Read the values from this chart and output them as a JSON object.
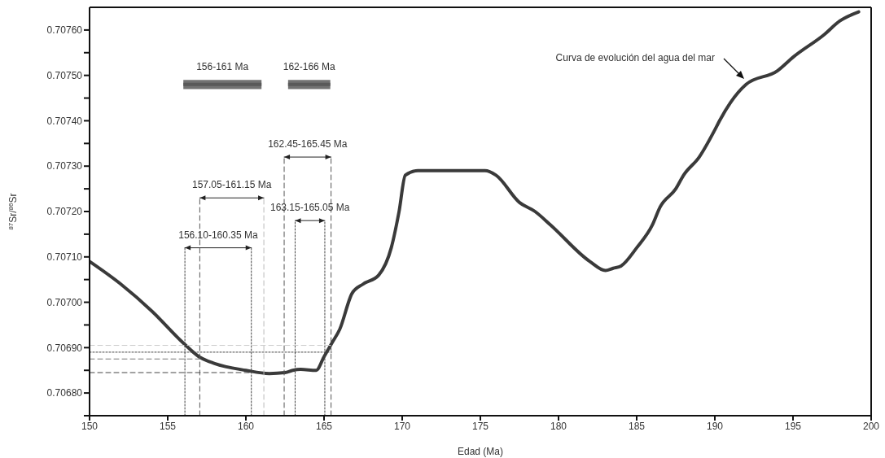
{
  "chart_data": {
    "type": "line",
    "xlabel": "Edad (Ma)",
    "ylabel": "$^{87}$Sr/$^{86}$Sr",
    "xlim": [
      150,
      200
    ],
    "xticks": [
      150,
      155,
      160,
      165,
      170,
      175,
      180,
      185,
      190,
      195,
      200
    ],
    "ylim": [
      0.70675,
      0.70765
    ],
    "yticks": [
      {
        "value": 0.70675,
        "label": null
      },
      {
        "value": 0.7068,
        "label": "0.70680"
      },
      {
        "value": 0.70685,
        "label": null
      },
      {
        "value": 0.7069,
        "label": "0.70690"
      },
      {
        "value": 0.70695,
        "label": null
      },
      {
        "value": 0.707,
        "label": "0.70700"
      },
      {
        "value": 0.70705,
        "label": null
      },
      {
        "value": 0.7071,
        "label": "0.70710"
      },
      {
        "value": 0.70715,
        "label": null
      },
      {
        "value": 0.7072,
        "label": "0.70720"
      },
      {
        "value": 0.70725,
        "label": null
      },
      {
        "value": 0.7073,
        "label": "0.70730"
      },
      {
        "value": 0.70735,
        "label": null
      },
      {
        "value": 0.7074,
        "label": "0.70740"
      },
      {
        "value": 0.70745,
        "label": null
      },
      {
        "value": 0.7075,
        "label": "0.70750"
      },
      {
        "value": 0.70755,
        "label": null
      },
      {
        "value": 0.7076,
        "label": "0.70760"
      }
    ],
    "series": [
      {
        "color": "#3a3a3a",
        "line_style": "solid",
        "x": [
          150,
          152,
          154,
          156,
          157,
          158,
          160,
          161.5,
          162.5,
          163,
          163.5,
          164.5,
          165,
          165.5,
          166,
          166.8,
          167.5,
          168.5,
          169.3,
          169.8,
          170.2,
          171,
          173,
          175.3,
          176,
          177.5,
          178.5,
          179.5,
          182,
          183,
          183.5,
          184,
          185,
          186,
          186.5,
          187.5,
          188,
          189,
          190,
          190.3,
          191,
          192,
          194,
          195,
          197,
          198,
          199.2
        ],
        "values": [
          0.70709,
          0.70704,
          0.70698,
          0.70691,
          0.70688,
          0.706865,
          0.70685,
          0.706843,
          0.706845,
          0.70685,
          0.706852,
          0.70685,
          0.70688,
          0.70691,
          0.70694,
          0.70702,
          0.70704,
          0.70706,
          0.70712,
          0.7072,
          0.70728,
          0.70729,
          0.70729,
          0.70729,
          0.70728,
          0.70722,
          0.7072,
          0.70717,
          0.70709,
          0.70707,
          0.707075,
          0.70708,
          0.70712,
          0.70717,
          0.70721,
          0.70725,
          0.70728,
          0.70732,
          0.70738,
          0.7074,
          0.70744,
          0.70748,
          0.70751,
          0.70754,
          0.70759,
          0.70762,
          0.70764
        ]
      },
      {
        "name": "156-161 Ma",
        "color": "#595959",
        "line_style": "solid",
        "x": [
          156,
          161
        ],
        "values": [
          0.70748,
          0.70748
        ],
        "lower": [
          0.70747,
          0.70747
        ],
        "upper": [
          0.70749,
          0.70749
        ]
      },
      {
        "name": "162-166 Ma",
        "color": "#595959",
        "line_style": "solid",
        "x": [
          162.7,
          165.4
        ],
        "values": [
          0.70748,
          0.70748
        ],
        "lower": [
          0.70747,
          0.70747
        ],
        "upper": [
          0.70749,
          0.70749
        ]
      },
      {
        "name": "156.10-160.35 Ma",
        "color": "#222222",
        "line_style": "solid",
        "marker": "triangle",
        "x": [
          156.1,
          160.35
        ],
        "values": [
          0.70712,
          0.70712
        ]
      },
      {
        "name": "157.05-161.15 Ma",
        "color": "#222222",
        "line_style": "solid",
        "marker": "triangle",
        "x": [
          157.05,
          161.15
        ],
        "values": [
          0.70723,
          0.70723
        ]
      },
      {
        "name": "162.45-165.45 Ma",
        "color": "#222222",
        "line_style": "solid",
        "marker": "triangle",
        "x": [
          162.45,
          165.45
        ],
        "values": [
          0.70732,
          0.70732
        ]
      },
      {
        "name": "163.15-165.05 Ma",
        "color": "#222222",
        "line_style": "solid",
        "marker": "triangle",
        "x": [
          163.15,
          165.05
        ],
        "values": [
          0.70718,
          0.70718
        ]
      },
      {
        "color": "#444444",
        "line_style": "dotted",
        "x": [
          156.1,
          156.1
        ],
        "values": [
          0.70675,
          0.70712
        ]
      },
      {
        "color": "#444444",
        "line_style": "dotted",
        "x": [
          160.35,
          160.35
        ],
        "values": [
          0.70675,
          0.70712
        ]
      },
      {
        "color": "#555555",
        "line_style": "dashed",
        "x": [
          157.05,
          157.05
        ],
        "values": [
          0.70675,
          0.70723
        ]
      },
      {
        "color": "#bbbbbb",
        "line_style": "dashed",
        "x": [
          161.15,
          161.15
        ],
        "values": [
          0.70675,
          0.70723
        ]
      },
      {
        "color": "#555555",
        "line_style": "dashed",
        "x": [
          162.45,
          162.45
        ],
        "values": [
          0.70675,
          0.70732
        ]
      },
      {
        "color": "#555555",
        "line_style": "dashed",
        "x": [
          165.45,
          165.45
        ],
        "values": [
          0.70675,
          0.70732
        ]
      },
      {
        "color": "#444444",
        "line_style": "dotted",
        "x": [
          163.15,
          163.15
        ],
        "values": [
          0.70675,
          0.70718
        ]
      },
      {
        "color": "#444444",
        "line_style": "dotted",
        "x": [
          165.05,
          165.05
        ],
        "values": [
          0.70675,
          0.70718
        ]
      },
      {
        "color": "#cccccc",
        "line_style": "dashed",
        "x": [
          150,
          165.5
        ],
        "values": [
          0.706905,
          0.706905
        ]
      },
      {
        "color": "#444444",
        "line_style": "dotted",
        "x": [
          150,
          165.5
        ],
        "values": [
          0.70689,
          0.70689
        ]
      },
      {
        "color": "#777777",
        "line_style": "dashed",
        "x": [
          150,
          157.05
        ],
        "values": [
          0.706875,
          0.706875
        ]
      },
      {
        "color": "#444444",
        "line_style": "dashed",
        "x": [
          150,
          160.35
        ],
        "values": [
          0.706845,
          0.706845
        ]
      }
    ],
    "annotations": [
      "Curva de evolución del agua del mar"
    ]
  }
}
